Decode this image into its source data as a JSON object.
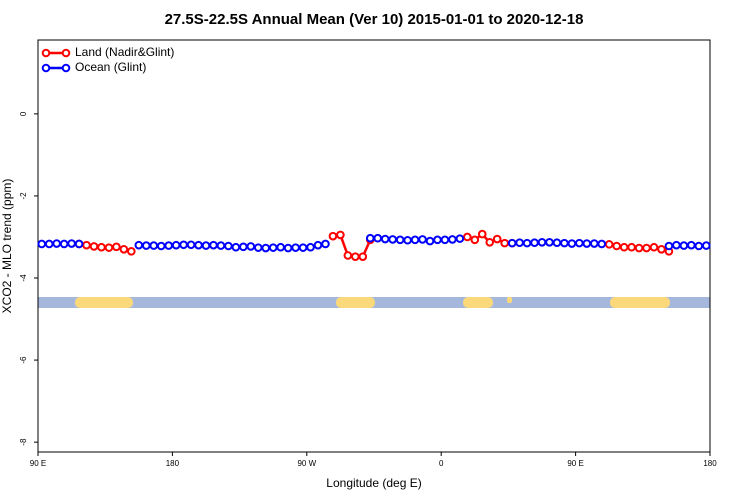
{
  "chart_data": {
    "type": "line",
    "title": "27.5S-22.5S Annual Mean (Ver 10)   2015-01-01 to 2020-12-18",
    "x_label": "Longitude (deg E)",
    "y_label": "XCO2 - MLO trend (ppm)",
    "x": [
      92.5,
      97.5,
      102.5,
      107.5,
      112.5,
      117.5,
      122.5,
      127.5,
      132.5,
      137.5,
      142.5,
      147.5,
      152.5,
      157.5,
      162.5,
      167.5,
      172.5,
      177.5,
      182.5,
      187.5,
      192.5,
      197.5,
      202.5,
      207.5,
      212.5,
      217.5,
      222.5,
      227.5,
      232.5,
      237.5,
      242.5,
      247.5,
      252.5,
      257.5,
      262.5,
      267.5,
      272.5,
      277.5,
      282.5,
      287.5,
      292.5,
      297.5,
      302.5,
      307.5,
      312.5,
      317.5,
      322.5,
      327.5,
      332.5,
      337.5,
      342.5,
      347.5,
      352.5,
      357.5,
      362.5,
      367.5,
      372.5,
      377.5,
      382.5,
      387.5,
      392.5,
      397.5,
      402.5,
      407.5,
      412.5,
      417.5,
      422.5,
      427.5,
      432.5,
      437.5,
      442.5,
      447.5,
      452.5,
      457.5,
      462.5,
      467.5,
      472.5,
      477.5,
      482.5,
      487.5,
      492.5,
      497.5,
      502.5,
      507.5,
      512.5,
      517.5,
      522.5,
      527.5,
      532.5,
      537.5
    ],
    "series": [
      {
        "name": "Land (Nadir&Glint)",
        "color": "#ff0000",
        "values": [
          null,
          null,
          null,
          null,
          null,
          -3.17,
          -3.2,
          -3.23,
          -3.25,
          -3.26,
          -3.24,
          -3.3,
          -3.35,
          null,
          null,
          null,
          null,
          null,
          null,
          null,
          null,
          null,
          null,
          null,
          null,
          null,
          null,
          null,
          null,
          null,
          null,
          null,
          null,
          null,
          null,
          null,
          null,
          null,
          null,
          -2.98,
          -2.95,
          -3.45,
          -3.48,
          -3.48,
          -3.07,
          null,
          null,
          null,
          null,
          null,
          null,
          null,
          null,
          null,
          null,
          null,
          null,
          -3.0,
          -3.07,
          -2.93,
          -3.13,
          -3.05,
          -3.15,
          -3.15,
          null,
          null,
          null,
          null,
          null,
          null,
          null,
          null,
          null,
          null,
          null,
          null,
          -3.18,
          -3.22,
          -3.25,
          -3.25,
          -3.27,
          -3.27,
          -3.25,
          -3.3,
          -3.35,
          null,
          null,
          null,
          null,
          null
        ]
      },
      {
        "name": "Ocean (Glint)",
        "color": "#0000ff",
        "values": [
          -3.17,
          -3.17,
          -3.16,
          -3.17,
          -3.16,
          -3.17,
          null,
          null,
          null,
          null,
          null,
          null,
          null,
          -3.2,
          -3.21,
          -3.21,
          -3.22,
          -3.21,
          -3.2,
          -3.19,
          -3.19,
          -3.2,
          -3.21,
          -3.2,
          -3.21,
          -3.22,
          -3.25,
          -3.24,
          -3.23,
          -3.26,
          -3.27,
          -3.26,
          -3.25,
          -3.27,
          -3.26,
          -3.26,
          -3.25,
          -3.2,
          -3.17,
          null,
          null,
          null,
          null,
          null,
          -3.03,
          -3.03,
          -3.05,
          -3.06,
          -3.07,
          -3.08,
          -3.07,
          -3.06,
          -3.1,
          -3.07,
          -3.07,
          -3.06,
          -3.04,
          null,
          null,
          null,
          null,
          null,
          null,
          -3.15,
          -3.14,
          -3.15,
          -3.14,
          -3.13,
          -3.13,
          -3.14,
          -3.15,
          -3.16,
          -3.15,
          -3.16,
          -3.16,
          -3.17,
          null,
          null,
          null,
          null,
          null,
          null,
          null,
          null,
          -3.22,
          -3.2,
          -3.21,
          -3.2,
          -3.22,
          -3.21
        ]
      }
    ],
    "xlim": [
      90,
      540
    ],
    "xticks": [
      {
        "value": 90,
        "label": "90 E"
      },
      180,
      {
        "value": 270,
        "label": "90 W"
      },
      {
        "value": 360,
        "label": "0"
      },
      {
        "value": 450,
        "label": "90 E"
      },
      180.0001
    ],
    "ylim": [
      -8.24,
      1.8
    ],
    "yticks": [
      -8,
      -6,
      -4,
      -2,
      0
    ],
    "legend": "top-left"
  }
}
